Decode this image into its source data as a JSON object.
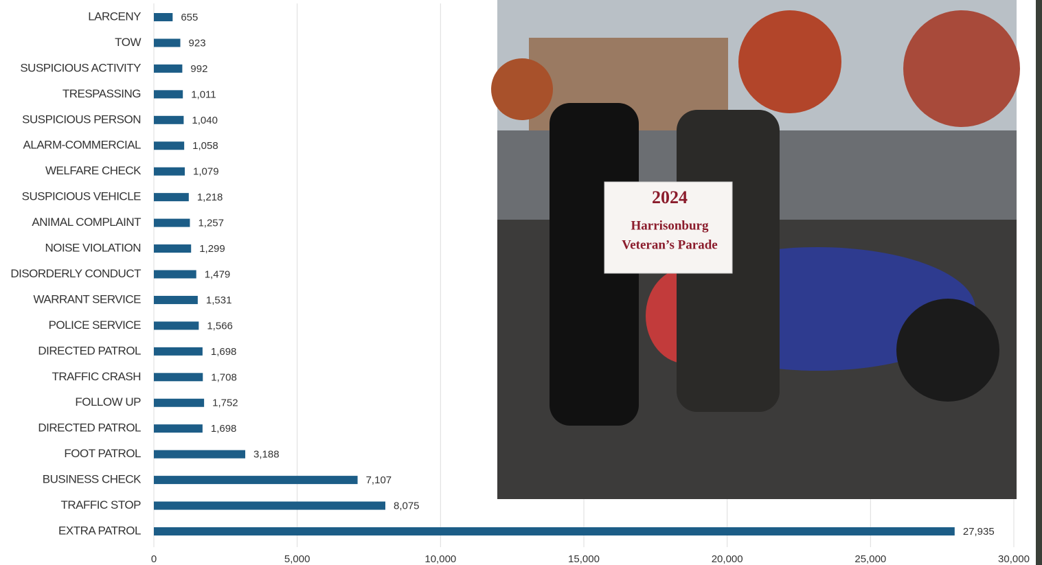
{
  "chart_data": {
    "type": "barh",
    "categories": [
      "LARCENY",
      "TOW",
      "SUSPICIOUS ACTIVITY",
      "TRESPASSING",
      "SUSPICIOUS PERSON",
      "ALARM-COMMERCIAL",
      "WELFARE CHECK",
      "SUSPICIOUS VEHICLE",
      "ANIMAL COMPLAINT",
      "NOISE VIOLATION",
      "DISORDERLY CONDUCT",
      "WARRANT SERVICE",
      "POLICE SERVICE",
      "DIRECTED PATROL",
      "TRAFFIC CRASH",
      "FOLLOW UP",
      "DIRECTED PATROL",
      "FOOT PATROL",
      "BUSINESS CHECK",
      "TRAFFIC STOP",
      "EXTRA PATROL"
    ],
    "values": [
      655,
      923,
      992,
      1011,
      1040,
      1058,
      1079,
      1218,
      1257,
      1299,
      1479,
      1531,
      1566,
      1698,
      1708,
      1752,
      1698,
      3188,
      7107,
      8075,
      27935
    ],
    "value_labels": [
      "655",
      "923",
      "992",
      "1,011",
      "1,040",
      "1,058",
      "1,079",
      "1,218",
      "1,257",
      "1,299",
      "1,479",
      "1,531",
      "1,566",
      "1,698",
      "1,708",
      "1,752",
      "1,698",
      "3,188",
      "7,107",
      "8,075",
      "27,935"
    ],
    "color": "#1c5d87",
    "xlim": [
      0,
      30000
    ],
    "xticks": [
      0,
      {
        "value": 5000,
        "label": "5,000"
      },
      {
        "value": 10000,
        "label": "10,000"
      },
      {
        "value": 15000,
        "label": "15,000"
      },
      {
        "value": 20000,
        "label": "20,000"
      },
      {
        "value": 25000,
        "label": "25,000"
      },
      {
        "value": 30000,
        "label": "30,000"
      }
    ],
    "grid": true
  },
  "photo_sign": {
    "year": "2024",
    "line1": "Harrisonburg",
    "line2": "Veteran’s Parade"
  }
}
